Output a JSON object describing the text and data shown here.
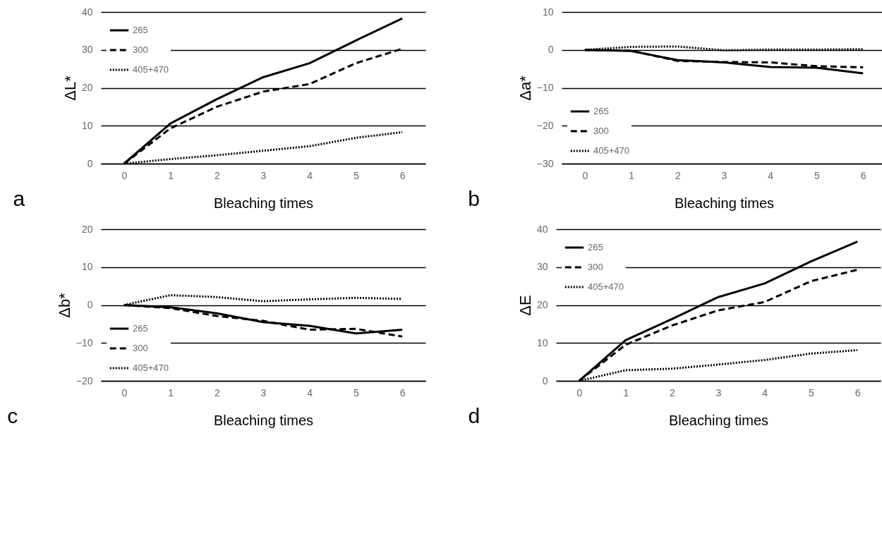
{
  "chart_data": [
    {
      "type": "line",
      "xlabel": "Bleaching times",
      "ylabel": "ΔL*",
      "categories": [
        "0",
        "1",
        "2",
        "3",
        "4",
        "5",
        "6"
      ],
      "ylim": [
        0,
        40
      ],
      "yticks": [
        0,
        10,
        20,
        30,
        40
      ],
      "grid": "y",
      "legend": "top left",
      "annotations": [
        "a"
      ],
      "series": [
        {
          "name": "265",
          "color": "#000000",
          "line_style": "solid",
          "values": [
            0,
            10.6,
            17,
            22.8,
            26.5,
            32.5,
            38.3
          ]
        },
        {
          "name": "300",
          "color": "#000000",
          "line_style": "dashed",
          "values": [
            0,
            9.3,
            15,
            19,
            21,
            26.5,
            30.3
          ]
        },
        {
          "name": "405+470",
          "color": "#000000",
          "line_style": "dotted",
          "values": [
            0,
            1.2,
            2.2,
            3.4,
            4.6,
            6.8,
            8.3
          ]
        }
      ]
    },
    {
      "type": "line",
      "xlabel": "Bleaching times",
      "ylabel": "Δa*",
      "categories": [
        "0",
        "1",
        "2",
        "3",
        "4",
        "5",
        "6"
      ],
      "ylim": [
        -30,
        10
      ],
      "yticks": [
        -30,
        -20,
        -10,
        0,
        10
      ],
      "grid": "y",
      "legend": "bottom left",
      "annotations": [
        "b"
      ],
      "series": [
        {
          "name": "265",
          "color": "#000000",
          "line_style": "solid",
          "values": [
            0,
            -0.3,
            -2.7,
            -3.3,
            -4.5,
            -4.7,
            -6.2
          ]
        },
        {
          "name": "300",
          "color": "#000000",
          "line_style": "dashed",
          "values": [
            0,
            -0.2,
            -2.9,
            -3.2,
            -3.3,
            -4.3,
            -4.6
          ]
        },
        {
          "name": "405+470",
          "color": "#000000",
          "line_style": "dotted",
          "values": [
            0,
            0.8,
            0.9,
            -0.1,
            0.1,
            0.1,
            0.2
          ]
        }
      ]
    },
    {
      "type": "line",
      "xlabel": "Bleaching times",
      "ylabel": "Δb*",
      "categories": [
        "0",
        "1",
        "2",
        "3",
        "4",
        "5",
        "6"
      ],
      "ylim": [
        -20,
        20
      ],
      "yticks": [
        -20,
        -10,
        0,
        10,
        20
      ],
      "grid": "y",
      "legend": "bottom left",
      "annotations": [
        "c"
      ],
      "series": [
        {
          "name": "265",
          "color": "#000000",
          "line_style": "solid",
          "values": [
            0,
            -0.6,
            -2.2,
            -4.5,
            -5.5,
            -7.5,
            -6.5
          ]
        },
        {
          "name": "300",
          "color": "#000000",
          "line_style": "dashed",
          "values": [
            0,
            -0.8,
            -2.9,
            -4.2,
            -6.5,
            -6.3,
            -8.3
          ]
        },
        {
          "name": "405+470",
          "color": "#000000",
          "line_style": "dotted",
          "values": [
            0,
            2.6,
            2.1,
            1,
            1.5,
            1.9,
            1.6
          ]
        }
      ]
    },
    {
      "type": "line",
      "xlabel": "Bleaching times",
      "ylabel": "ΔE",
      "categories": [
        "0",
        "1",
        "2",
        "3",
        "4",
        "5",
        "6"
      ],
      "ylim": [
        0,
        40
      ],
      "yticks": [
        0,
        10,
        20,
        30,
        40
      ],
      "grid": "y",
      "legend": "top left",
      "annotations": [
        "d"
      ],
      "series": [
        {
          "name": "265",
          "color": "#000000",
          "line_style": "solid",
          "values": [
            0,
            10.7,
            16.3,
            22.1,
            25.7,
            31.5,
            36.7
          ]
        },
        {
          "name": "300",
          "color": "#000000",
          "line_style": "dashed",
          "values": [
            0,
            9.5,
            14.6,
            18.6,
            20.8,
            26.3,
            29.3
          ]
        },
        {
          "name": "405+470",
          "color": "#000000",
          "line_style": "dotted",
          "values": [
            0,
            2.8,
            3.2,
            4.3,
            5.5,
            7.2,
            8.1
          ]
        }
      ]
    }
  ]
}
